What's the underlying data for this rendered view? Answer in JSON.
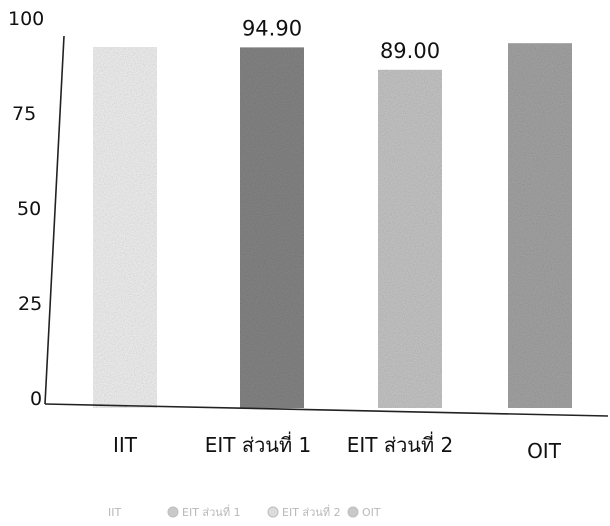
{
  "chart_data": {
    "type": "bar",
    "title": "",
    "xlabel": "",
    "ylabel": "",
    "ylim": [
      0,
      100
    ],
    "yticks": [
      0,
      25,
      50,
      75,
      100
    ],
    "categories": [
      "IIT",
      "EIT ส่วนที่ 1",
      "EIT ส่วนที่ 2",
      "OIT"
    ],
    "values": [
      95,
      94.9,
      89.0,
      96
    ],
    "data_labels": [
      "",
      "94.90",
      "89.00",
      ""
    ],
    "colors": [
      "#f1f1f1",
      "#858585",
      "#c6c6c6",
      "#a4a4a4"
    ],
    "grid": false,
    "legend_position": "bottom",
    "legend": [
      "IIT",
      "EIT ส่วนที่ 1",
      "EIT ส่วนที่ 2",
      "OIT"
    ]
  }
}
